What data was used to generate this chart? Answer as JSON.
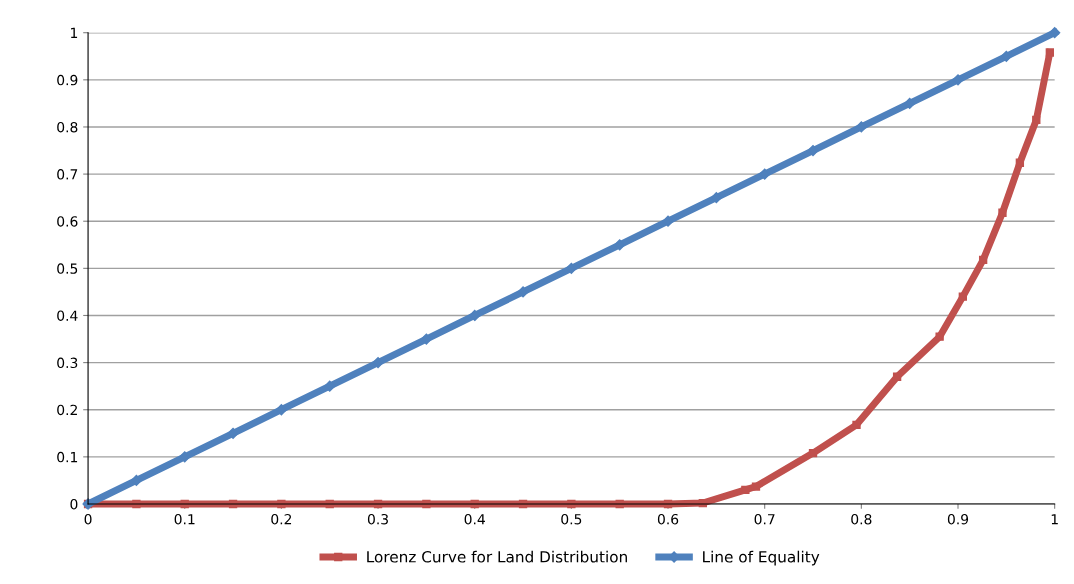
{
  "chart_data": {
    "type": "line",
    "series": [
      {
        "name": "Lorenz Curve for Land Distribution",
        "color": "#c0504d",
        "marker": "square",
        "x": [
          0,
          0.05,
          0.1,
          0.15,
          0.2,
          0.25,
          0.3,
          0.35,
          0.4,
          0.45,
          0.5,
          0.55,
          0.6,
          0.636,
          0.68,
          0.691,
          0.75,
          0.795,
          0.837,
          0.881,
          0.905,
          0.926,
          0.946,
          0.964,
          0.981,
          0.995
        ],
        "values": [
          0,
          0,
          0,
          0,
          0,
          0,
          0,
          0,
          0,
          0,
          0,
          0,
          0,
          0.002,
          0.03,
          0.037,
          0.108,
          0.168,
          0.27,
          0.355,
          0.44,
          0.518,
          0.618,
          0.724,
          0.815,
          0.958
        ]
      },
      {
        "name": "Line of Equality",
        "color": "#4f81bd",
        "marker": "diamond",
        "x": [
          0,
          0.05,
          0.1,
          0.15,
          0.2,
          0.25,
          0.3,
          0.35,
          0.4,
          0.45,
          0.5,
          0.55,
          0.6,
          0.65,
          0.7,
          0.75,
          0.8,
          0.85,
          0.9,
          0.95,
          1
        ],
        "values": [
          0,
          0.05,
          0.1,
          0.15,
          0.2,
          0.25,
          0.3,
          0.35,
          0.4,
          0.45,
          0.5,
          0.55,
          0.6,
          0.65,
          0.7,
          0.75,
          0.8,
          0.85,
          0.9,
          0.95,
          1
        ]
      }
    ],
    "xlim": [
      0,
      1
    ],
    "ylim": [
      0,
      1
    ],
    "xticks": [
      0,
      0.1,
      0.2,
      0.3,
      0.4,
      0.5,
      0.6,
      0.7,
      0.8,
      0.9,
      1
    ],
    "yticks": [
      0,
      0.1,
      0.2,
      0.3,
      0.4,
      0.5,
      0.6,
      0.7,
      0.8,
      0.9,
      1
    ],
    "grid": "y",
    "legend": "bottom",
    "line_style": "solid"
  }
}
